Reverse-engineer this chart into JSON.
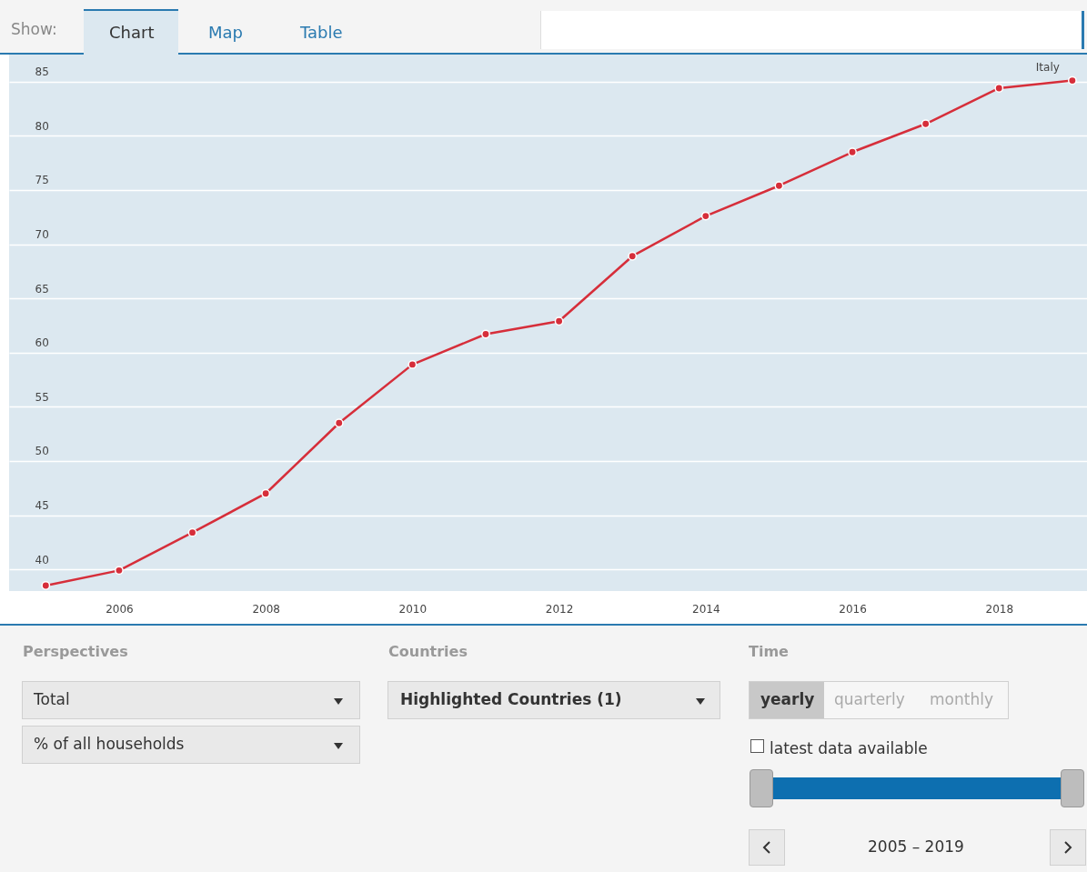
{
  "chart_data": {
    "type": "line",
    "x": [
      2005,
      2006,
      2007,
      2008,
      2009,
      2010,
      2011,
      2012,
      2013,
      2014,
      2015,
      2016,
      2017,
      2018,
      2019
    ],
    "series": [
      {
        "name": "Italy",
        "color": "#d62e3a",
        "values": [
          38.5,
          39.9,
          43.4,
          47.0,
          53.5,
          58.9,
          61.7,
          62.9,
          68.9,
          72.6,
          75.4,
          78.5,
          81.1,
          84.4,
          85.1
        ]
      }
    ],
    "xlim": [
      2004.5,
      2019.2
    ],
    "xticks": [
      2006,
      2008,
      2010,
      2012,
      2014,
      2016,
      2018
    ],
    "ylim": [
      38,
      87.5
    ],
    "yticks": [
      40,
      45,
      50,
      55,
      60,
      65,
      70,
      75,
      80,
      85
    ],
    "grid": "y",
    "marker": "circle",
    "line_style": "solid",
    "annotations": [
      "Show:",
      "Chart",
      "Map",
      "Table",
      "Perspectives",
      "Total",
      "% of all households",
      "Countries",
      "Highlighted Countries (1)",
      "Time",
      "yearly",
      "quarterly",
      "monthly",
      "latest data available",
      "2005 – 2019"
    ]
  }
}
